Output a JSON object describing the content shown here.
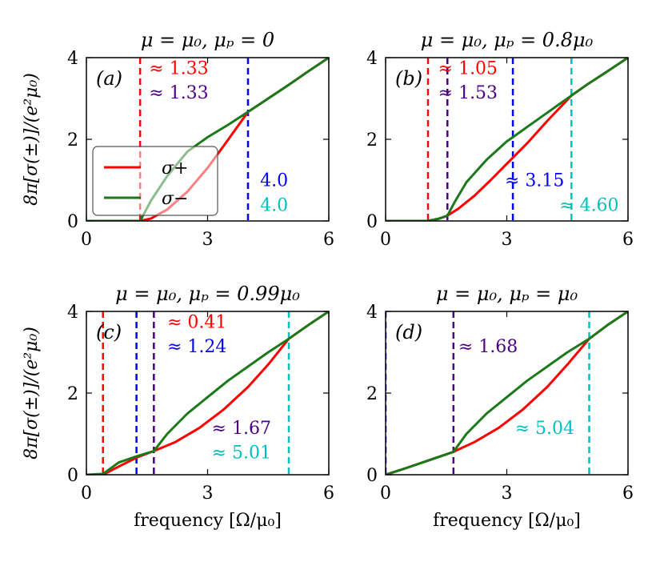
{
  "chart_data": [
    {
      "type": "line",
      "id": "a",
      "panel_label": "(a)",
      "title": "μ = μ₀, μₚ = 0",
      "xlim": [
        0,
        6
      ],
      "ylim": [
        0,
        4
      ],
      "xticks": [
        0,
        3,
        6
      ],
      "yticks": [
        0,
        2,
        4
      ],
      "xlabel": "",
      "ylabel": "8π[σ(±)]/(e²μ₀)",
      "series": [
        {
          "name": "σ+",
          "color": "#ff0000",
          "x": [
            0,
            1.33,
            1.6,
            2.0,
            2.5,
            3.0,
            3.5,
            4.0,
            4.5,
            5.0,
            5.5,
            6.0
          ],
          "y": [
            0,
            0,
            0.06,
            0.28,
            0.72,
            1.3,
            1.98,
            2.67,
            3.0,
            3.33,
            3.67,
            4.0
          ]
        },
        {
          "name": "σ−",
          "color": "#1a7a1a",
          "x": [
            0,
            1.33,
            1.6,
            2.0,
            2.5,
            3.0,
            3.5,
            4.0,
            4.5,
            5.0,
            5.5,
            6.0
          ],
          "y": [
            0,
            0,
            0.5,
            1.1,
            1.7,
            2.05,
            2.35,
            2.67,
            3.0,
            3.33,
            3.67,
            4.0
          ]
        }
      ],
      "vlines": [
        {
          "x": 1.33,
          "color": "#ff0000"
        },
        {
          "x": 4.0,
          "color": "#0000ff"
        }
      ],
      "annotations": [
        {
          "text": "≈ 1.33",
          "color": "#ff0000",
          "x": 1.55,
          "y": 3.6
        },
        {
          "text": "≈ 1.33",
          "color": "#4b0082",
          "x": 1.55,
          "y": 3.0
        },
        {
          "text": "4.0",
          "color": "#0000ff",
          "x": 4.3,
          "y": 0.85
        },
        {
          "text": "4.0",
          "color": "#00bfbf",
          "x": 4.3,
          "y": 0.25
        }
      ],
      "legend": {
        "position": "lower-left",
        "entries": [
          "σ+",
          "σ−"
        ]
      }
    },
    {
      "type": "line",
      "id": "b",
      "panel_label": "(b)",
      "title": "μ = μ₀, μₚ = 0.8μ₀",
      "xlim": [
        0,
        6
      ],
      "ylim": [
        0,
        4
      ],
      "xticks": [
        0,
        3,
        6
      ],
      "yticks": [
        0,
        2,
        4
      ],
      "xlabel": "",
      "ylabel": "",
      "series": [
        {
          "name": "σ+",
          "color": "#ff0000",
          "x": [
            0,
            1.05,
            1.3,
            1.53,
            1.8,
            2.2,
            2.6,
            3.0,
            3.15,
            3.5,
            4.0,
            4.6,
            5.0,
            5.5,
            6.0
          ],
          "y": [
            0,
            0,
            0.05,
            0.13,
            0.3,
            0.62,
            1.0,
            1.4,
            1.55,
            1.9,
            2.45,
            3.07,
            3.35,
            3.67,
            4.0
          ]
        },
        {
          "name": "σ−",
          "color": "#1a7a1a",
          "x": [
            0,
            1.05,
            1.3,
            1.53,
            1.7,
            2.0,
            2.5,
            3.0,
            3.15,
            3.5,
            4.0,
            4.6,
            5.0,
            5.5,
            6.0
          ],
          "y": [
            0,
            0,
            0.05,
            0.13,
            0.45,
            0.95,
            1.5,
            1.95,
            2.05,
            2.3,
            2.65,
            3.07,
            3.35,
            3.67,
            4.0
          ]
        }
      ],
      "vlines": [
        {
          "x": 1.05,
          "color": "#ff0000"
        },
        {
          "x": 1.53,
          "color": "#4b0082"
        },
        {
          "x": 3.15,
          "color": "#0000ff"
        },
        {
          "x": 4.6,
          "color": "#00bfbf"
        }
      ],
      "annotations": [
        {
          "text": "≈ 1.05",
          "color": "#ff0000",
          "x": 1.3,
          "y": 3.6
        },
        {
          "text": "≈ 1.53",
          "color": "#4b0082",
          "x": 1.3,
          "y": 3.0
        },
        {
          "text": "≈ 3.15",
          "color": "#0000ff",
          "x": 2.95,
          "y": 0.85
        },
        {
          "text": "≈ 4.60",
          "color": "#00bfbf",
          "x": 4.3,
          "y": 0.25
        }
      ]
    },
    {
      "type": "line",
      "id": "c",
      "panel_label": "(c)",
      "title": "μ = μ₀, μₚ = 0.99μ₀",
      "xlim": [
        0,
        6
      ],
      "ylim": [
        0,
        4
      ],
      "xticks": [
        0,
        3,
        6
      ],
      "yticks": [
        0,
        2,
        4
      ],
      "xlabel": "frequency [Ω/μ₀]",
      "ylabel": "8π[σ(±)]/(e²μ₀)",
      "series": [
        {
          "name": "σ+",
          "color": "#ff0000",
          "x": [
            0,
            0.41,
            0.8,
            1.24,
            1.67,
            2.2,
            2.8,
            3.4,
            4.0,
            4.5,
            5.01,
            5.5,
            6.0
          ],
          "y": [
            0,
            0,
            0.2,
            0.42,
            0.58,
            0.8,
            1.15,
            1.6,
            2.15,
            2.7,
            3.33,
            3.67,
            4.0
          ]
        },
        {
          "name": "σ−",
          "color": "#1a7a1a",
          "x": [
            0,
            0.41,
            0.8,
            1.24,
            1.67,
            2.0,
            2.5,
            3.0,
            3.5,
            4.0,
            4.5,
            5.01,
            5.5,
            6.0
          ],
          "y": [
            0,
            0.02,
            0.3,
            0.45,
            0.58,
            1.0,
            1.5,
            1.9,
            2.3,
            2.65,
            3.0,
            3.33,
            3.67,
            4.0
          ]
        }
      ],
      "vlines": [
        {
          "x": 0.41,
          "color": "#ff0000"
        },
        {
          "x": 1.24,
          "color": "#0000ff"
        },
        {
          "x": 1.67,
          "color": "#4b0082"
        },
        {
          "x": 5.01,
          "color": "#00bfbf"
        }
      ],
      "annotations": [
        {
          "text": "≈ 0.41",
          "color": "#ff0000",
          "x": 2.0,
          "y": 3.6
        },
        {
          "text": "≈ 1.24",
          "color": "#0000ff",
          "x": 2.0,
          "y": 3.0
        },
        {
          "text": "≈ 1.67",
          "color": "#4b0082",
          "x": 3.1,
          "y": 1.0
        },
        {
          "text": "≈ 5.01",
          "color": "#00bfbf",
          "x": 3.1,
          "y": 0.4
        }
      ]
    },
    {
      "type": "line",
      "id": "d",
      "panel_label": "(d)",
      "title": "μ = μ₀, μₚ = μ₀",
      "xlim": [
        0,
        6
      ],
      "ylim": [
        0,
        4
      ],
      "xticks": [
        0,
        3,
        6
      ],
      "yticks": [
        0,
        2,
        4
      ],
      "xlabel": "frequency [Ω/μ₀]",
      "ylabel": "",
      "series": [
        {
          "name": "σ+",
          "color": "#ff0000",
          "x": [
            0,
            0.5,
            1.0,
            1.68,
            2.2,
            2.8,
            3.4,
            4.0,
            4.5,
            5.04,
            5.5,
            6.0
          ],
          "y": [
            0,
            0.16,
            0.33,
            0.56,
            0.8,
            1.15,
            1.6,
            2.15,
            2.7,
            3.33,
            3.67,
            4.0
          ]
        },
        {
          "name": "σ−",
          "color": "#1a7a1a",
          "x": [
            0,
            0.5,
            1.0,
            1.68,
            2.0,
            2.5,
            3.0,
            3.5,
            4.0,
            4.5,
            5.04,
            5.5,
            6.0
          ],
          "y": [
            0,
            0.16,
            0.33,
            0.56,
            1.0,
            1.5,
            1.9,
            2.3,
            2.65,
            3.0,
            3.33,
            3.67,
            4.0
          ]
        }
      ],
      "vlines": [
        {
          "x": 0.0,
          "color": "#0000ff"
        },
        {
          "x": 1.68,
          "color": "#4b0082"
        },
        {
          "x": 5.04,
          "color": "#00bfbf"
        }
      ],
      "annotations": [
        {
          "text": "≈ 1.68",
          "color": "#4b0082",
          "x": 1.8,
          "y": 3.0
        },
        {
          "text": "≈ 5.04",
          "color": "#00bfbf",
          "x": 3.2,
          "y": 1.0
        }
      ]
    }
  ]
}
